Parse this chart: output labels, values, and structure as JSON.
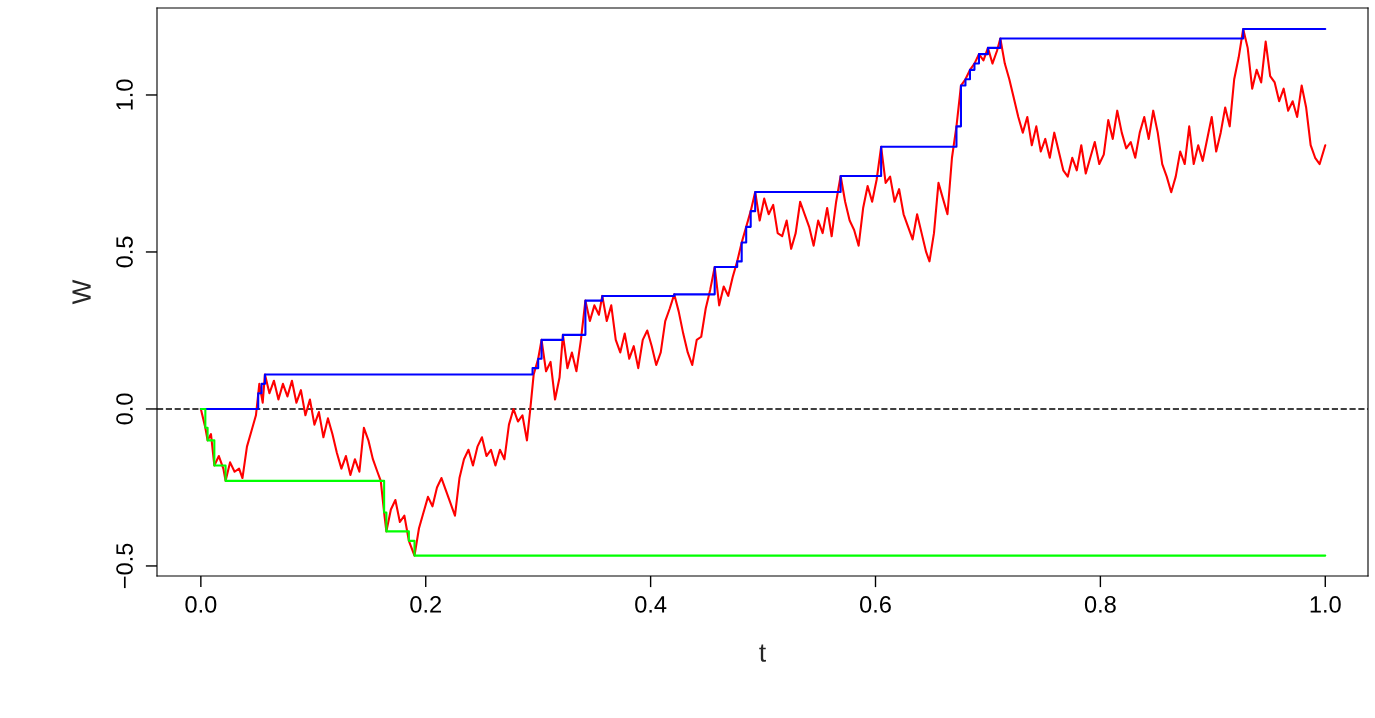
{
  "chart_data": {
    "type": "line",
    "xlabel": "t",
    "ylabel": "W",
    "xlim": [
      -0.039,
      1.038
    ],
    "ylim": [
      -0.532,
      1.277
    ],
    "xticks": [
      {
        "value": 0,
        "label": "0.0"
      },
      {
        "value": 0.2,
        "label": "0.2"
      },
      {
        "value": 0.4,
        "label": "0.4"
      },
      {
        "value": 0.6,
        "label": "0.6"
      },
      {
        "value": 0.8,
        "label": "0.8"
      },
      {
        "value": 1,
        "label": "1.0"
      }
    ],
    "yticks": [
      {
        "value": -0.5,
        "label": "−0.5"
      },
      {
        "value": 0,
        "label": "0.0"
      },
      {
        "value": 0.5,
        "label": "0.5"
      },
      {
        "value": 1,
        "label": "1.0"
      }
    ],
    "grid": false,
    "legend": false,
    "marker": "none",
    "line_style": "solid",
    "ref_lines": [
      {
        "axis": "y",
        "value": 0,
        "label": null,
        "color": "#000000",
        "line_style": "dashed"
      }
    ],
    "series": [
      {
        "color": "#ff0000",
        "x": [
          0,
          0.004,
          0.006,
          0.009,
          0.012,
          0.016,
          0.02,
          0.022,
          0.026,
          0.03,
          0.034,
          0.037,
          0.041,
          0.045,
          0.049,
          0.052,
          0.055,
          0.057,
          0.061,
          0.065,
          0.069,
          0.073,
          0.077,
          0.081,
          0.085,
          0.089,
          0.093,
          0.097,
          0.101,
          0.105,
          0.109,
          0.113,
          0.117,
          0.121,
          0.125,
          0.129,
          0.133,
          0.137,
          0.141,
          0.145,
          0.149,
          0.153,
          0.157,
          0.16,
          0.163,
          0.165,
          0.169,
          0.173,
          0.177,
          0.181,
          0.185,
          0.19,
          0.194,
          0.198,
          0.202,
          0.206,
          0.21,
          0.214,
          0.218,
          0.222,
          0.226,
          0.23,
          0.234,
          0.238,
          0.242,
          0.246,
          0.25,
          0.254,
          0.258,
          0.262,
          0.266,
          0.27,
          0.274,
          0.278,
          0.282,
          0.286,
          0.29,
          0.293,
          0.296,
          0.3,
          0.303,
          0.307,
          0.311,
          0.315,
          0.319,
          0.322,
          0.326,
          0.33,
          0.334,
          0.338,
          0.342,
          0.346,
          0.35,
          0.354,
          0.357,
          0.361,
          0.365,
          0.369,
          0.373,
          0.377,
          0.381,
          0.385,
          0.389,
          0.393,
          0.397,
          0.401,
          0.405,
          0.409,
          0.413,
          0.417,
          0.421,
          0.425,
          0.429,
          0.433,
          0.437,
          0.441,
          0.445,
          0.449,
          0.453,
          0.457,
          0.461,
          0.465,
          0.469,
          0.473,
          0.477,
          0.481,
          0.485,
          0.489,
          0.493,
          0.497,
          0.501,
          0.505,
          0.509,
          0.513,
          0.517,
          0.521,
          0.525,
          0.529,
          0.533,
          0.537,
          0.541,
          0.545,
          0.549,
          0.553,
          0.557,
          0.561,
          0.565,
          0.569,
          0.573,
          0.577,
          0.581,
          0.585,
          0.589,
          0.593,
          0.597,
          0.601,
          0.605,
          0.609,
          0.613,
          0.617,
          0.621,
          0.625,
          0.629,
          0.633,
          0.637,
          0.641,
          0.645,
          0.648,
          0.652,
          0.656,
          0.66,
          0.664,
          0.668,
          0.672,
          0.676,
          0.68,
          0.684,
          0.688,
          0.692,
          0.696,
          0.7,
          0.704,
          0.708,
          0.711,
          0.715,
          0.719,
          0.723,
          0.727,
          0.731,
          0.735,
          0.739,
          0.743,
          0.747,
          0.751,
          0.755,
          0.759,
          0.763,
          0.767,
          0.771,
          0.775,
          0.779,
          0.783,
          0.787,
          0.791,
          0.795,
          0.799,
          0.803,
          0.807,
          0.811,
          0.815,
          0.819,
          0.823,
          0.827,
          0.831,
          0.835,
          0.839,
          0.843,
          0.847,
          0.851,
          0.855,
          0.859,
          0.863,
          0.867,
          0.871,
          0.875,
          0.879,
          0.883,
          0.887,
          0.891,
          0.895,
          0.899,
          0.903,
          0.907,
          0.911,
          0.915,
          0.919,
          0.923,
          0.927,
          0.931,
          0.935,
          0.939,
          0.943,
          0.947,
          0.951,
          0.955,
          0.959,
          0.963,
          0.967,
          0.971,
          0.975,
          0.979,
          0.983,
          0.987,
          0.991,
          0.995,
          1.0
        ],
        "values": [
          0,
          -0.06,
          -0.1,
          -0.08,
          -0.18,
          -0.15,
          -0.19,
          -0.229,
          -0.17,
          -0.2,
          -0.19,
          -0.22,
          -0.12,
          -0.07,
          -0.02,
          0.08,
          0.02,
          0.11,
          0.05,
          0.09,
          0.03,
          0.08,
          0.04,
          0.09,
          0.02,
          0.06,
          -0.02,
          0.03,
          -0.05,
          -0.01,
          -0.09,
          -0.03,
          -0.08,
          -0.14,
          -0.19,
          -0.15,
          -0.21,
          -0.16,
          -0.2,
          -0.06,
          -0.1,
          -0.16,
          -0.2,
          -0.229,
          -0.33,
          -0.39,
          -0.32,
          -0.29,
          -0.36,
          -0.34,
          -0.42,
          -0.467,
          -0.38,
          -0.33,
          -0.28,
          -0.31,
          -0.25,
          -0.22,
          -0.26,
          -0.3,
          -0.34,
          -0.22,
          -0.16,
          -0.13,
          -0.18,
          -0.12,
          -0.09,
          -0.15,
          -0.13,
          -0.18,
          -0.13,
          -0.16,
          -0.05,
          0.0,
          -0.04,
          -0.02,
          -0.1,
          0.0,
          0.11,
          0.16,
          0.22,
          0.12,
          0.15,
          0.03,
          0.1,
          0.236,
          0.13,
          0.18,
          0.12,
          0.22,
          0.345,
          0.28,
          0.33,
          0.3,
          0.36,
          0.28,
          0.33,
          0.22,
          0.18,
          0.24,
          0.16,
          0.2,
          0.13,
          0.22,
          0.25,
          0.2,
          0.14,
          0.18,
          0.28,
          0.32,
          0.365,
          0.31,
          0.24,
          0.18,
          0.14,
          0.22,
          0.23,
          0.32,
          0.38,
          0.452,
          0.33,
          0.39,
          0.36,
          0.42,
          0.47,
          0.53,
          0.58,
          0.63,
          0.691,
          0.6,
          0.67,
          0.62,
          0.65,
          0.56,
          0.55,
          0.6,
          0.51,
          0.56,
          0.66,
          0.62,
          0.58,
          0.52,
          0.6,
          0.56,
          0.64,
          0.55,
          0.66,
          0.742,
          0.66,
          0.6,
          0.57,
          0.52,
          0.64,
          0.71,
          0.66,
          0.73,
          0.835,
          0.72,
          0.74,
          0.66,
          0.7,
          0.62,
          0.58,
          0.54,
          0.62,
          0.56,
          0.5,
          0.47,
          0.56,
          0.72,
          0.67,
          0.62,
          0.8,
          0.9,
          1.03,
          1.05,
          1.08,
          1.1,
          1.13,
          1.11,
          1.15,
          1.1,
          1.14,
          1.18,
          1.1,
          1.05,
          0.99,
          0.93,
          0.88,
          0.93,
          0.84,
          0.9,
          0.82,
          0.86,
          0.8,
          0.88,
          0.82,
          0.76,
          0.74,
          0.8,
          0.76,
          0.84,
          0.75,
          0.8,
          0.85,
          0.78,
          0.81,
          0.92,
          0.86,
          0.95,
          0.88,
          0.83,
          0.85,
          0.8,
          0.88,
          0.93,
          0.86,
          0.95,
          0.88,
          0.78,
          0.74,
          0.69,
          0.74,
          0.82,
          0.78,
          0.9,
          0.78,
          0.84,
          0.79,
          0.86,
          0.93,
          0.82,
          0.88,
          0.96,
          0.9,
          1.05,
          1.12,
          1.21,
          1.15,
          1.02,
          1.08,
          1.04,
          1.17,
          1.06,
          1.04,
          0.98,
          1.02,
          0.95,
          0.98,
          0.93,
          1.03,
          0.96,
          0.84,
          0.8,
          0.78,
          0.84
        ]
      },
      {
        "type": "step",
        "color": "#0000ff",
        "x": [
          0,
          0.051,
          0.054,
          0.057,
          0.295,
          0.3,
          0.303,
          0.322,
          0.342,
          0.357,
          0.421,
          0.457,
          0.477,
          0.481,
          0.485,
          0.489,
          0.493,
          0.569,
          0.605,
          0.672,
          0.676,
          0.68,
          0.684,
          0.688,
          0.692,
          0.7,
          0.711,
          0.927,
          1.0
        ],
        "values": [
          0,
          0.05,
          0.08,
          0.11,
          0.13,
          0.16,
          0.22,
          0.236,
          0.345,
          0.36,
          0.365,
          0.452,
          0.47,
          0.53,
          0.58,
          0.63,
          0.691,
          0.742,
          0.835,
          0.9,
          1.03,
          1.05,
          1.08,
          1.1,
          1.13,
          1.15,
          1.18,
          1.21,
          1.21
        ]
      },
      {
        "type": "step",
        "color": "#00ff00",
        "x": [
          0,
          0.004,
          0.006,
          0.012,
          0.022,
          0.163,
          0.165,
          0.185,
          0.19,
          1.0
        ],
        "values": [
          0,
          -0.06,
          -0.1,
          -0.18,
          -0.229,
          -0.33,
          -0.39,
          -0.42,
          -0.467,
          -0.467
        ]
      }
    ]
  }
}
